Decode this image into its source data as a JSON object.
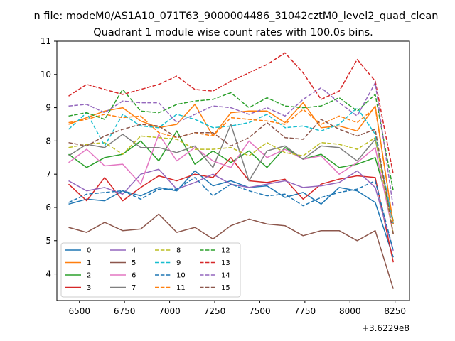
{
  "chart_data": {
    "type": "line",
    "suptitle": "n file: modeM0/AS1A10_071T63_9000004486_31042cztM0_level2_quad_clean",
    "title": "Quadrant 1 module wise count rates with 100.0s bins.",
    "xlabel": "",
    "ylabel": "",
    "x_offset_label": "+3.6229e8",
    "xlim": [
      6375,
      8330
    ],
    "ylim": [
      3.2,
      11.0
    ],
    "x_ticks": [
      6500,
      6750,
      7000,
      7250,
      7500,
      7750,
      8000,
      8250
    ],
    "x_tick_labels": [
      "6500",
      "6750",
      "7000",
      "7250",
      "7500",
      "7750",
      "8000",
      "8250"
    ],
    "y_ticks": [
      4,
      5,
      6,
      7,
      8,
      9,
      10,
      11
    ],
    "y_tick_labels": [
      "4",
      "5",
      "6",
      "7",
      "8",
      "9",
      "10",
      "11"
    ],
    "grid": false,
    "legend_position": "lower-left",
    "legend_columns": 4,
    "x": [
      6440,
      6540,
      6640,
      6740,
      6840,
      6940,
      7040,
      7140,
      7240,
      7340,
      7440,
      7540,
      7640,
      7740,
      7840,
      7940,
      8040,
      8140,
      8240
    ],
    "series": [
      {
        "name": "0",
        "color": "#1f77b4",
        "dash": "solid",
        "values": [
          6.1,
          6.25,
          6.2,
          6.5,
          6.35,
          6.6,
          6.5,
          7.1,
          6.65,
          6.8,
          6.6,
          6.65,
          6.3,
          6.45,
          6.1,
          6.6,
          6.5,
          6.15,
          4.5
        ]
      },
      {
        "name": "1",
        "color": "#ff7f0e",
        "dash": "solid",
        "values": [
          8.5,
          8.7,
          8.9,
          9.0,
          8.6,
          8.4,
          8.5,
          9.1,
          8.15,
          8.85,
          8.9,
          8.9,
          8.55,
          9.15,
          8.4,
          8.45,
          8.3,
          9.05,
          5.5
        ]
      },
      {
        "name": "2",
        "color": "#2ca02c",
        "dash": "solid",
        "values": [
          7.6,
          7.2,
          7.5,
          7.6,
          8.0,
          7.4,
          8.3,
          7.3,
          7.7,
          7.35,
          7.7,
          7.2,
          7.8,
          7.45,
          7.6,
          7.2,
          7.3,
          7.5,
          5.6
        ]
      },
      {
        "name": "3",
        "color": "#d62728",
        "dash": "solid",
        "values": [
          6.7,
          6.2,
          6.9,
          6.2,
          6.6,
          6.95,
          6.8,
          7.0,
          6.9,
          7.5,
          6.8,
          6.75,
          6.85,
          6.25,
          6.7,
          6.85,
          6.95,
          6.9,
          4.35
        ]
      },
      {
        "name": "4",
        "color": "#9467bd",
        "dash": "solid",
        "values": [
          6.8,
          6.5,
          6.6,
          6.4,
          7.0,
          7.15,
          6.55,
          6.75,
          7.0,
          6.7,
          6.6,
          6.7,
          6.8,
          6.6,
          6.65,
          6.75,
          7.1,
          6.6,
          4.7
        ]
      },
      {
        "name": "5",
        "color": "#8c564b",
        "dash": "solid",
        "values": [
          5.4,
          5.25,
          5.55,
          5.3,
          5.35,
          5.8,
          5.25,
          5.4,
          5.05,
          5.45,
          5.65,
          5.5,
          5.45,
          5.15,
          5.3,
          5.3,
          5.0,
          5.3,
          3.55
        ]
      },
      {
        "name": "6",
        "color": "#e377c2",
        "dash": "solid",
        "values": [
          7.35,
          7.75,
          7.25,
          7.3,
          6.7,
          8.2,
          7.4,
          7.8,
          7.4,
          7.2,
          8.0,
          7.5,
          7.75,
          7.45,
          7.55,
          7.0,
          7.35,
          7.8,
          5.2
        ]
      },
      {
        "name": "7",
        "color": "#7f7f7f",
        "dash": "solid",
        "values": [
          7.55,
          7.9,
          7.8,
          8.2,
          7.8,
          7.8,
          7.65,
          7.85,
          7.2,
          8.5,
          6.8,
          7.7,
          7.85,
          7.45,
          7.85,
          7.8,
          7.4,
          8.05,
          5.5
        ]
      },
      {
        "name": "8",
        "color": "#bcbd22",
        "dash": "dashed",
        "values": [
          7.8,
          7.9,
          7.95,
          7.6,
          8.15,
          8.1,
          8.05,
          7.75,
          7.75,
          7.8,
          7.55,
          7.95,
          7.65,
          7.55,
          7.95,
          7.9,
          7.75,
          8.1,
          5.2
        ]
      },
      {
        "name": "9",
        "color": "#17becf",
        "dash": "dashed",
        "values": [
          8.35,
          8.85,
          7.85,
          8.8,
          8.45,
          8.4,
          8.8,
          8.65,
          8.4,
          8.45,
          8.55,
          8.8,
          8.4,
          8.45,
          8.3,
          8.5,
          9.0,
          8.2,
          5.5
        ]
      },
      {
        "name": "10",
        "color": "#1f77b4",
        "dash": "dashed",
        "values": [
          6.15,
          6.4,
          6.45,
          6.5,
          6.25,
          6.55,
          6.55,
          6.9,
          6.35,
          6.7,
          6.5,
          6.35,
          6.4,
          6.05,
          6.3,
          6.45,
          6.55,
          6.8,
          4.7
        ]
      },
      {
        "name": "11",
        "color": "#ff7f0e",
        "dash": "dashed",
        "values": [
          8.55,
          8.65,
          8.8,
          8.7,
          8.75,
          8.25,
          8.1,
          8.25,
          8.15,
          8.7,
          8.65,
          8.6,
          8.5,
          8.95,
          8.5,
          8.75,
          8.55,
          9.0,
          5.5
        ]
      },
      {
        "name": "12",
        "color": "#2ca02c",
        "dash": "dashed",
        "values": [
          8.75,
          8.85,
          8.65,
          9.55,
          8.9,
          8.85,
          9.1,
          9.2,
          9.25,
          9.45,
          9.0,
          9.3,
          9.05,
          9.0,
          9.05,
          9.3,
          8.9,
          9.4,
          6.5
        ]
      },
      {
        "name": "13",
        "color": "#d62728",
        "dash": "dashed",
        "values": [
          9.35,
          9.7,
          9.55,
          9.4,
          9.55,
          9.7,
          9.95,
          9.55,
          9.5,
          9.8,
          10.05,
          10.3,
          10.65,
          10.05,
          9.25,
          9.5,
          10.45,
          9.8,
          7.0
        ]
      },
      {
        "name": "14",
        "color": "#9467bd",
        "dash": "dashed",
        "values": [
          9.05,
          9.1,
          8.85,
          9.2,
          9.15,
          9.15,
          8.55,
          8.8,
          9.05,
          9.0,
          8.8,
          9.0,
          8.75,
          9.25,
          9.6,
          9.15,
          8.75,
          9.75,
          6.0
        ]
      },
      {
        "name": "15",
        "color": "#8c564b",
        "dash": "dashed",
        "values": [
          7.95,
          7.85,
          8.15,
          8.35,
          8.5,
          8.45,
          8.1,
          8.25,
          8.25,
          7.85,
          8.1,
          8.55,
          8.1,
          8.05,
          8.65,
          8.35,
          8.15,
          8.35,
          5.2
        ]
      }
    ]
  }
}
